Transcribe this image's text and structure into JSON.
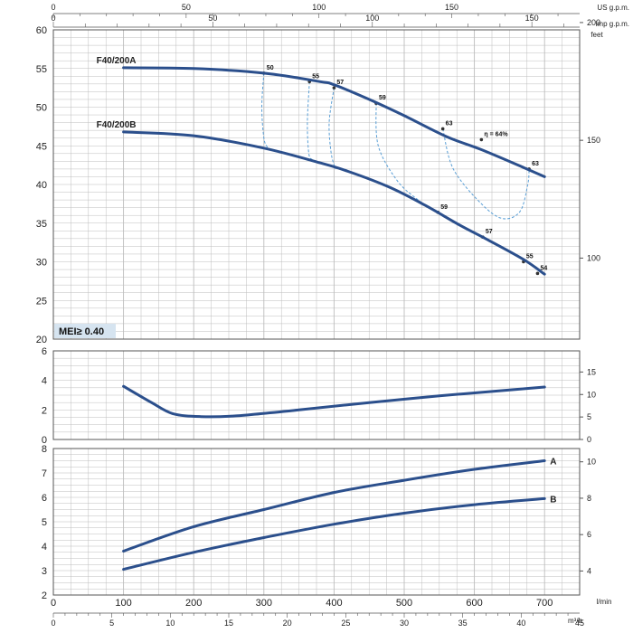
{
  "units": {
    "us_gpm": "US g.p.m.",
    "imp_gpm": "imp g.p.m.",
    "feet": "feet",
    "lmin": "l/min",
    "m3h": "m³/h"
  },
  "mei_label": "MEI≥ 0.40",
  "colors": {
    "curve": "#2b4f8c",
    "efficiency": "#5a9fd6",
    "grid": "#bdbdbd",
    "mei_bg": "#d6e4f0"
  },
  "chart_data": [
    {
      "type": "line",
      "panel": "head",
      "xlim": [
        0,
        750
      ],
      "ylim": [
        20,
        60
      ],
      "y2lim": [
        65.6,
        196.9
      ],
      "grid": true,
      "yticks": [
        20,
        25,
        30,
        35,
        40,
        45,
        50,
        55,
        60
      ],
      "y2ticks": [
        100,
        150,
        200
      ],
      "top_axis_us": [
        0,
        50,
        100,
        150,
        "US g.p.m."
      ],
      "top_axis_imp": [
        0,
        50,
        100,
        150,
        "imp g.p.m."
      ],
      "series": [
        {
          "name": "F40/200A",
          "x": [
            100,
            200,
            300,
            380,
            400,
            450,
            500,
            560,
            610,
            670,
            700
          ],
          "y": [
            55.1,
            55.0,
            54.4,
            53.3,
            52.9,
            51.0,
            48.9,
            46.2,
            44.5,
            42.2,
            41.0
          ]
        },
        {
          "name": "F40/200B",
          "x": [
            100,
            200,
            300,
            380,
            420,
            480,
            530,
            580,
            620,
            670,
            700
          ],
          "y": [
            46.8,
            46.3,
            44.7,
            42.8,
            41.7,
            39.6,
            37.3,
            34.7,
            32.8,
            30.3,
            28.4
          ]
        }
      ],
      "efficiency_points": [
        {
          "label": "50",
          "x": 300,
          "y": 54.4
        },
        {
          "label": "55",
          "x": 365,
          "y": 53.3
        },
        {
          "label": "57",
          "x": 400,
          "y": 52.5
        },
        {
          "label": "59",
          "x": 460,
          "y": 50.5
        },
        {
          "label": "63",
          "x": 555,
          "y": 47.2
        },
        {
          "label": "η = 64%",
          "x": 610,
          "y": 45.8
        },
        {
          "label": "63",
          "x": 678,
          "y": 42.0
        },
        {
          "label": "59",
          "x": 548,
          "y": 36.4
        },
        {
          "label": "57",
          "x": 612,
          "y": 33.2
        },
        {
          "label": "55",
          "x": 670,
          "y": 30.0
        },
        {
          "label": "54",
          "x": 690,
          "y": 28.5
        }
      ],
      "efficiency_iso": [
        {
          "x": [
            300,
            297,
            300,
            305
          ],
          "y": [
            54.4,
            50.0,
            46.0,
            44.8
          ]
        },
        {
          "x": [
            365,
            362,
            364,
            369
          ],
          "y": [
            53.3,
            48.0,
            44.0,
            43.2
          ]
        },
        {
          "x": [
            400,
            393,
            396,
            402
          ],
          "y": [
            52.5,
            48.0,
            44.0,
            42.0
          ]
        },
        {
          "x": [
            460,
            463,
            490,
            520,
            548
          ],
          "y": [
            50.5,
            45.0,
            40.5,
            38.0,
            36.4
          ]
        },
        {
          "x": [
            555,
            570,
            610,
            640,
            665,
            676,
            678
          ],
          "y": [
            47.2,
            42.0,
            37.5,
            35.6,
            36.5,
            40.0,
            42.0
          ]
        }
      ]
    },
    {
      "type": "line",
      "panel": "npsh",
      "xlim": [
        0,
        750
      ],
      "ylim": [
        0,
        6
      ],
      "y2lim": [
        0,
        19.7
      ],
      "grid": true,
      "yticks": [
        0,
        2,
        4,
        6
      ],
      "y2ticks": [
        0,
        5,
        10,
        15
      ],
      "series": [
        {
          "x": [
            100,
            140,
            170,
            210,
            260,
            350,
            450,
            550,
            650,
            700
          ],
          "y": [
            3.6,
            2.5,
            1.75,
            1.55,
            1.6,
            2.0,
            2.5,
            2.95,
            3.35,
            3.55
          ]
        }
      ]
    },
    {
      "type": "line",
      "panel": "power",
      "xlim": [
        0,
        750
      ],
      "ylim": [
        2,
        8
      ],
      "y2lim": [
        2.68,
        10.73
      ],
      "grid": true,
      "yticks": [
        2,
        3,
        4,
        5,
        6,
        7,
        8
      ],
      "y2ticks": [
        4,
        6,
        8,
        10
      ],
      "xticks_lmin": [
        0,
        100,
        200,
        300,
        400,
        500,
        600,
        700
      ],
      "xticks_m3h": [
        0,
        5,
        10,
        15,
        20,
        25,
        30,
        35,
        40,
        45
      ],
      "series": [
        {
          "name": "A",
          "x": [
            100,
            200,
            300,
            400,
            500,
            600,
            700
          ],
          "y": [
            3.8,
            4.8,
            5.5,
            6.2,
            6.7,
            7.15,
            7.5
          ]
        },
        {
          "name": "B",
          "x": [
            100,
            200,
            300,
            400,
            500,
            600,
            700
          ],
          "y": [
            3.05,
            3.75,
            4.35,
            4.9,
            5.35,
            5.7,
            5.95
          ]
        }
      ]
    }
  ]
}
